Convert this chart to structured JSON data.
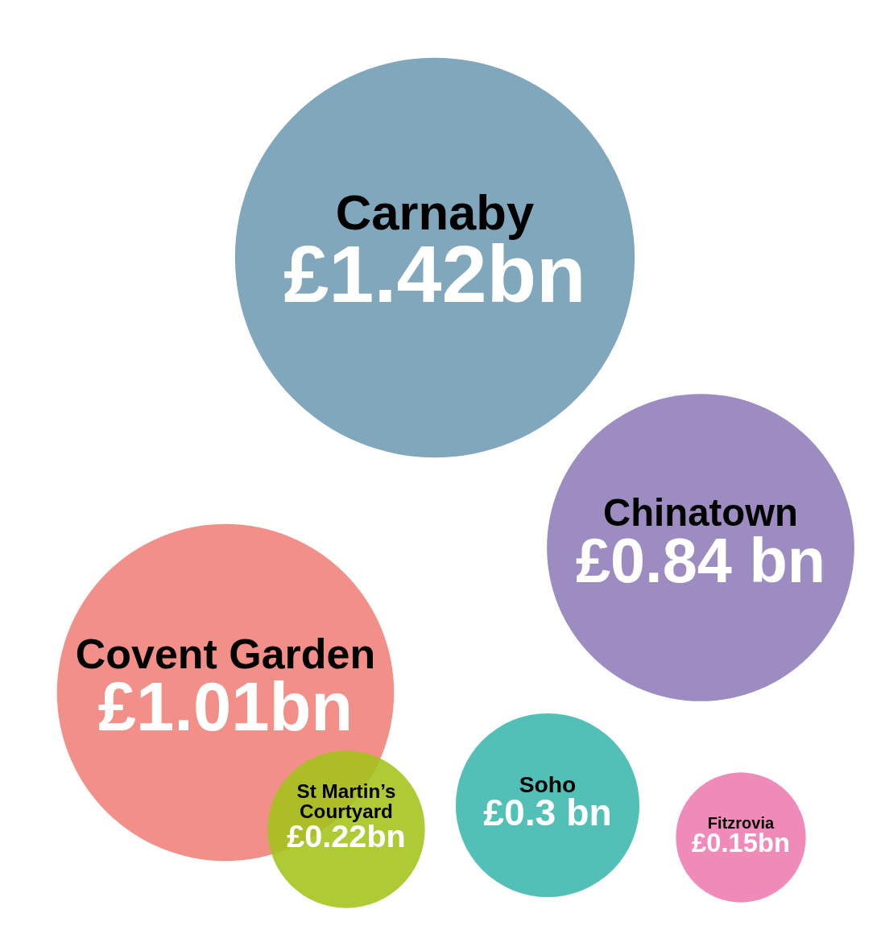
{
  "chart_data": {
    "type": "other",
    "categories": [
      "Carnaby",
      "Covent Garden",
      "Chinatown",
      "Soho",
      "St Martin’s Courtyard",
      "Fitzrovia"
    ],
    "values": [
      1.42,
      1.01,
      0.84,
      0.3,
      0.22,
      0.15
    ],
    "value_labels": [
      "£1.42bn",
      "£1.01bn",
      "£0.84 bn",
      "£0.3 bn",
      "£0.22bn",
      "£0.15bn"
    ],
    "colors": [
      "#6f9bb4",
      "#f08078",
      "#8e7cba",
      "#3bb7ad",
      "#a3c41a",
      "#ee7aae"
    ]
  }
}
